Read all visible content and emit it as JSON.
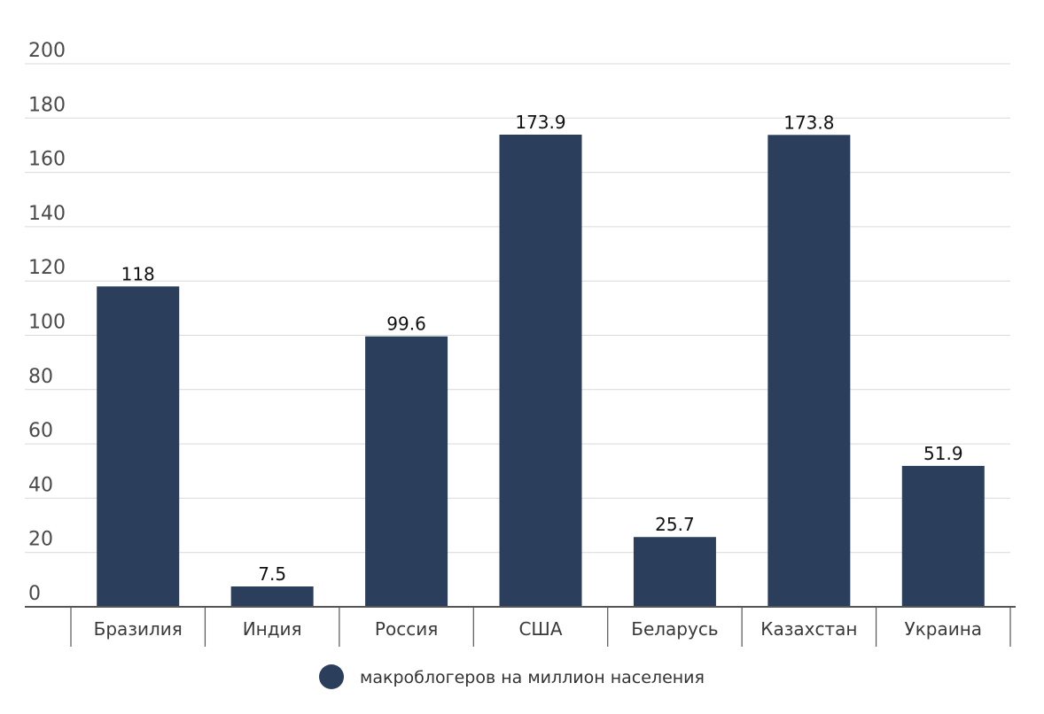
{
  "chart_data": {
    "type": "bar",
    "categories": [
      "Бразилия",
      "Индия",
      "Россия",
      "США",
      "Беларусь",
      "Казахстан",
      "Украина"
    ],
    "series": [
      {
        "name": "макроблогеров на миллион населения",
        "values": [
          118,
          7.5,
          99.6,
          173.9,
          25.7,
          173.8,
          51.9
        ],
        "labels": [
          "118",
          "7.5",
          "99.6",
          "173.9",
          "25.7",
          "173.8",
          "51.9"
        ]
      }
    ],
    "title": "",
    "xlabel": "",
    "ylabel": "",
    "ylim": [
      0,
      200
    ],
    "yticks": [
      "0",
      "20",
      "40",
      "60",
      "80",
      "100",
      "120",
      "140",
      "160",
      "180",
      "200"
    ],
    "grid": true,
    "legend_position": "bottom-center",
    "colors": {
      "bar": "#2b3e5c",
      "grid": "#d9d9d9",
      "axis": "#555555"
    }
  }
}
